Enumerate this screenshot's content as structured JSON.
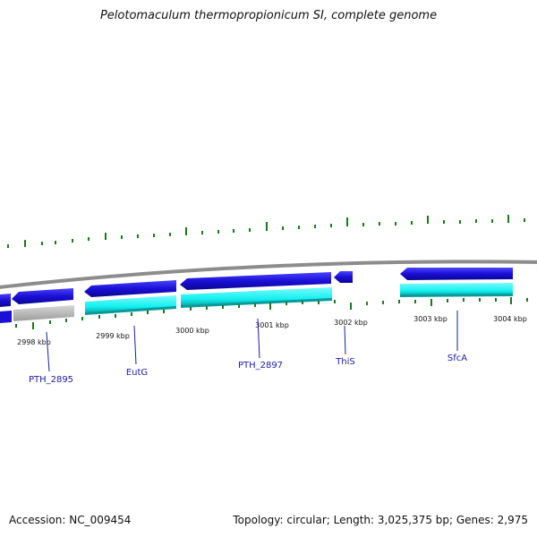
{
  "header": {
    "title": "Pelotomaculum thermopropionicum SI, complete genome"
  },
  "axis": {
    "ticks": [
      {
        "label": "2998 kbp"
      },
      {
        "label": "2999 kbp"
      },
      {
        "label": "3000 kbp"
      },
      {
        "label": "3001 kbp"
      },
      {
        "label": "3002 kbp"
      },
      {
        "label": "3003 kbp"
      },
      {
        "label": "3004 kbp"
      }
    ]
  },
  "genes": [
    {
      "label": "PTH_2895"
    },
    {
      "label": "EutG"
    },
    {
      "label": "PTH_2897"
    },
    {
      "label": "ThiS"
    },
    {
      "label": "SfcA"
    }
  ],
  "colors": {
    "forward_cds": "#1a0fd6",
    "rna": "#12f0f0",
    "rna_outline": "#0a9a9a",
    "pseudo": "#c0c0c0",
    "backbone": "#8c8c8c",
    "gc_ticks": "#1a7a1a",
    "label_line": "#1d1ba7"
  },
  "footer": {
    "accession": "Accession: NC_009454",
    "summary": "Topology: circular; Length: 3,025,375 bp; Genes: 2,975"
  }
}
